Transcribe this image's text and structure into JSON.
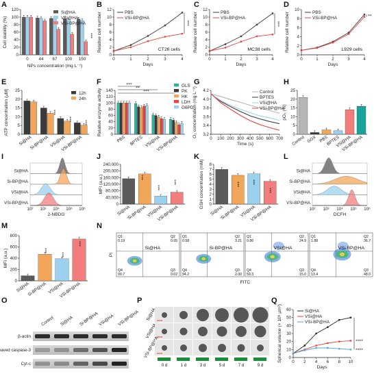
{
  "figure": {
    "colors": {
      "si_ha": "#5a5a5a",
      "si_bp_ha": "#f2a65a",
      "vsi_ha": "#9bd0ef",
      "vsi_bp_ha": "#f27d7d",
      "pbs": "#3a3a3a",
      "vsi_bp": "#e8423b",
      "gls": "#2bb5a3",
      "pk": "#3a3a3a",
      "hk": "#f2a65a",
      "ldh": "#e8423b",
      "g6pd": "#9bd0ef",
      "h12": "#3a3a3a",
      "h24": "#f2a65a",
      "control": "#b5b5b5",
      "gox": "#3a3a3a",
      "pbs_h": "#f2a65a",
      "bptes_h": "#9bd0ef",
      "vsi_ha_h": "#f27d7d",
      "vsi_bp_ha_h": "#1aa39a"
    },
    "panel_letters": [
      "A",
      "B",
      "C",
      "D",
      "E",
      "F",
      "G",
      "H",
      "I",
      "J",
      "K",
      "L",
      "M",
      "N",
      "O",
      "P",
      "Q"
    ],
    "groups4": [
      "Si@HA",
      "Si-BP@HA",
      "VSi@HA",
      "VSi-BP@HA"
    ],
    "stars3": "***",
    "stars2": "**",
    "stars4": "****"
  },
  "chart_data": [
    {
      "panel": "A",
      "type": "bar",
      "xlabel": "NPs concentration (mg L⁻¹)",
      "ylabel": "Cell viability (%)",
      "ylim": [
        0,
        120
      ],
      "yticks": [
        "0",
        "20",
        "40",
        "60",
        "80",
        "100",
        "120"
      ],
      "categories": [
        "0",
        "44",
        "67",
        "100",
        "150"
      ],
      "series": [
        {
          "name": "Si@HA",
          "values": [
            100,
            98,
            97,
            96,
            95
          ]
        },
        {
          "name": "VSi@HA",
          "values": [
            100,
            97,
            96,
            93,
            91
          ]
        },
        {
          "name": "VSi-BP@HA",
          "values": [
            100,
            90,
            68,
            55,
            35
          ]
        }
      ]
    },
    {
      "panel": "B",
      "type": "line",
      "xlabel": "Days",
      "ylabel": "Relative cell number",
      "annotation": "CT26 cells",
      "x": [
        0,
        1,
        2,
        3,
        4
      ],
      "xticks": [
        "0",
        "1",
        "2",
        "3",
        "4"
      ],
      "ylim": [
        0,
        12
      ],
      "yticks": [
        "0",
        "2",
        "4",
        "6",
        "8",
        "10",
        "12"
      ],
      "series": [
        {
          "name": "PBS",
          "values": [
            1,
            2.6,
            5.0,
            7.8,
            11.2
          ]
        },
        {
          "name": "VSi-BP@HA",
          "values": [
            1,
            2.0,
            3.6,
            4.8,
            5.6
          ]
        }
      ]
    },
    {
      "panel": "C",
      "type": "line",
      "xlabel": "Days",
      "ylabel": "Relative cell number",
      "annotation": "MC38 cells",
      "x": [
        0,
        1,
        2,
        3,
        4
      ],
      "xticks": [
        "0",
        "1",
        "2",
        "3",
        "4"
      ],
      "ylim": [
        0,
        12
      ],
      "yticks": [
        "0",
        "2",
        "4",
        "6",
        "8",
        "10",
        "12"
      ],
      "series": [
        {
          "name": "PBS",
          "values": [
            1,
            2.8,
            4.9,
            8.0,
            11.0
          ]
        },
        {
          "name": "VSi-BP@HA",
          "values": [
            1,
            1.9,
            3.5,
            4.9,
            5.4
          ]
        }
      ]
    },
    {
      "panel": "D",
      "type": "line",
      "xlabel": "Days",
      "ylabel": "Relative cell number",
      "annotation": "L929 cells",
      "x": [
        0,
        1,
        2,
        3,
        4
      ],
      "xticks": [
        "0",
        "1",
        "2",
        "3",
        "4"
      ],
      "ylim": [
        0,
        10
      ],
      "yticks": [
        "0",
        "2",
        "4",
        "6",
        "8",
        "10"
      ],
      "series": [
        {
          "name": "PBS",
          "values": [
            1,
            1.6,
            2.9,
            4.9,
            8.9
          ]
        },
        {
          "name": "VSi-BP@HA",
          "values": [
            1,
            1.5,
            2.7,
            4.6,
            8.4
          ]
        }
      ]
    },
    {
      "panel": "E",
      "type": "bar",
      "ylabel": "ATP concentration (μM)",
      "ylim": [
        0,
        25
      ],
      "yticks": [
        "0",
        "5",
        "10",
        "15",
        "20",
        "25"
      ],
      "categories": [
        "Si@HA",
        "Si-BP@HA",
        "VSi@HA",
        "VSi-BP@HA"
      ],
      "series": [
        {
          "name": "12h",
          "values": [
            19.0,
            15.0,
            9.0,
            6.5
          ]
        },
        {
          "name": "24h",
          "values": [
            18.5,
            12.0,
            7.5,
            5.2
          ]
        }
      ]
    },
    {
      "panel": "F",
      "type": "bar",
      "ylabel": "Relative enzyme activity",
      "ylim": [
        0,
        140
      ],
      "yticks": [
        "0",
        "20",
        "40",
        "60",
        "80",
        "100",
        "120",
        "140"
      ],
      "categories": [
        "PBS",
        "BPTES",
        "VSi@HA",
        "VSi-BP@HA"
      ],
      "series": [
        {
          "name": "GLS",
          "values": [
            100,
            98,
            62,
            48
          ]
        },
        {
          "name": "PK",
          "values": [
            100,
            88,
            60,
            45
          ]
        },
        {
          "name": "HK",
          "values": [
            100,
            85,
            55,
            38
          ]
        },
        {
          "name": "LDH",
          "values": [
            100,
            90,
            50,
            30
          ]
        },
        {
          "name": "G6PD",
          "values": [
            100,
            92,
            48,
            35
          ]
        }
      ]
    },
    {
      "panel": "G",
      "type": "line",
      "xlabel": "Time (s)",
      "ylabel": "O₂ concentration (mg L⁻¹)",
      "xlim": [
        0,
        700
      ],
      "xticks": [
        "0",
        "100",
        "200",
        "300",
        "400",
        "500",
        "600",
        "700"
      ],
      "ylim": [
        3.2,
        4.2
      ],
      "yticks": [
        "3.2",
        "3.4",
        "3.6",
        "3.8",
        "4.0",
        "4.2"
      ],
      "x": [
        0,
        100,
        200,
        300,
        400,
        500,
        600,
        700
      ],
      "series": [
        {
          "name": "Control",
          "values": [
            4.12,
            4.06,
            3.99,
            3.93,
            3.86,
            3.8,
            3.74,
            3.68
          ]
        },
        {
          "name": "BPTES",
          "values": [
            4.12,
            3.95,
            3.83,
            3.72,
            3.62,
            3.55,
            3.49,
            3.44
          ]
        },
        {
          "name": "VSi@HA",
          "values": [
            4.12,
            3.97,
            3.86,
            3.77,
            3.69,
            3.62,
            3.57,
            3.52
          ]
        },
        {
          "name": "VSi-BP@HA",
          "values": [
            4.12,
            3.92,
            3.77,
            3.63,
            3.51,
            3.42,
            3.35,
            3.29
          ]
        }
      ]
    },
    {
      "panel": "H",
      "type": "bar",
      "ylabel": "pO₂ (%)",
      "ylim": [
        0,
        25
      ],
      "yticks": [
        "0",
        "5",
        "10",
        "15",
        "20",
        "25"
      ],
      "categories": [
        "Control",
        "GOX",
        "PBS",
        "BPTES",
        "VSi@HA",
        "VSi-BP@HA"
      ],
      "values": [
        21.0,
        1.0,
        2.5,
        2.0,
        14.0,
        16.0
      ]
    },
    {
      "panel": "I",
      "type": "histogram",
      "xlabel": "2-NBDG",
      "xticks": [
        "10²",
        "10³",
        "10⁴",
        "10⁵",
        "10⁶"
      ],
      "series": [
        "Si@HA",
        "Si-BP@HA",
        "VSi@HA",
        "VSi-BP@HA"
      ]
    },
    {
      "panel": "J",
      "type": "bar",
      "ylabel": "MFI (a.u.)",
      "ylim": [
        0,
        250000
      ],
      "yticks": [
        "0",
        "40,000",
        "80,000",
        "120,000",
        "160,000",
        "200,000",
        "240,000"
      ],
      "categories": [
        "Si@HA",
        "Si-BP@HA",
        "VSi@HA",
        "VSi-BP@HA"
      ],
      "values": [
        160000,
        190000,
        50000,
        75000
      ]
    },
    {
      "panel": "K",
      "type": "bar",
      "ylabel": "GSH concentration (mM)",
      "ylim": [
        0,
        8
      ],
      "yticks": [
        "0",
        "1",
        "2",
        "3",
        "4",
        "5",
        "6",
        "7",
        "8"
      ],
      "categories": [
        "Si@HA",
        "Si-BP@HA",
        "VSi@HA",
        "VSi-BP@HA"
      ],
      "values": [
        7.0,
        5.8,
        6.1,
        4.6
      ]
    },
    {
      "panel": "L",
      "type": "histogram",
      "xlabel": "DCFH",
      "xticks": [
        "10²",
        "10³",
        "10⁴",
        "10⁵",
        "10⁶"
      ],
      "series": [
        "Si@HA",
        "Si-BP@HA",
        "VSi@HA",
        "VSi-BP@HA"
      ]
    },
    {
      "panel": "M",
      "type": "bar",
      "ylabel": "MFI (a.u.)",
      "ylim": [
        0,
        800
      ],
      "yticks": [
        "0",
        "200",
        "400",
        "600",
        "800"
      ],
      "categories": [
        "Si@HA",
        "Si-BP@HA",
        "VSi@HA",
        "VSi-BP@HA"
      ],
      "values": [
        90,
        470,
        390,
        740
      ]
    },
    {
      "panel": "N",
      "type": "scatter",
      "xlabel": "FITC",
      "ylabel": "PI",
      "plots": [
        {
          "name": "Si@HA",
          "q1": "0.19",
          "q2": "0.05",
          "q3": "0.02",
          "q4": "99.7"
        },
        {
          "name": "Si-BP@HA",
          "q1": "0.58",
          "q2": "3.21",
          "q3": "2.00",
          "q4": "94.2"
        },
        {
          "name": "VSi@HA",
          "q1": "0.86",
          "q2": "24.9",
          "q3": "15.0",
          "q4": "59.3"
        },
        {
          "name": "VSi-BP@HA",
          "q1": "1.88",
          "q2": "36.7",
          "q3": "48.0",
          "q4": "13.4"
        }
      ]
    },
    {
      "panel": "Q",
      "type": "line",
      "xlabel": "Days",
      "ylabel": "Spherical volume (× 10⁶ μm³)",
      "x": [
        0,
        2,
        4,
        6,
        8,
        10
      ],
      "xticks": [
        "0",
        "2",
        "4",
        "6",
        "8",
        "10"
      ],
      "ylim": [
        0,
        60
      ],
      "yticks": [
        "0",
        "10",
        "20",
        "30",
        "40",
        "50",
        "60"
      ],
      "series": [
        {
          "name": "Si@HA",
          "values": [
            5,
            15,
            30,
            38,
            47,
            50
          ]
        },
        {
          "name": "VSi@HA",
          "values": [
            5,
            10,
            15,
            18,
            20,
            21
          ]
        },
        {
          "name": "VSi-BP@HA",
          "values": [
            5,
            9,
            12,
            12,
            11,
            10
          ]
        }
      ]
    }
  ],
  "blot": {
    "lanes": [
      "Control",
      "Si@HA",
      "Si-BP@HA",
      "VSi@HA",
      "VSi-BP@HA"
    ],
    "rows": [
      "β-actin",
      "Cleaved caspase-3",
      "Cyt-c"
    ]
  },
  "spheroids": {
    "rows": [
      "Si@HA",
      "VSi@HA",
      "VSi-BP@HA"
    ],
    "days": [
      "0 d",
      "1 d",
      "3 d",
      "5 d",
      "7 d",
      "9 d"
    ]
  }
}
